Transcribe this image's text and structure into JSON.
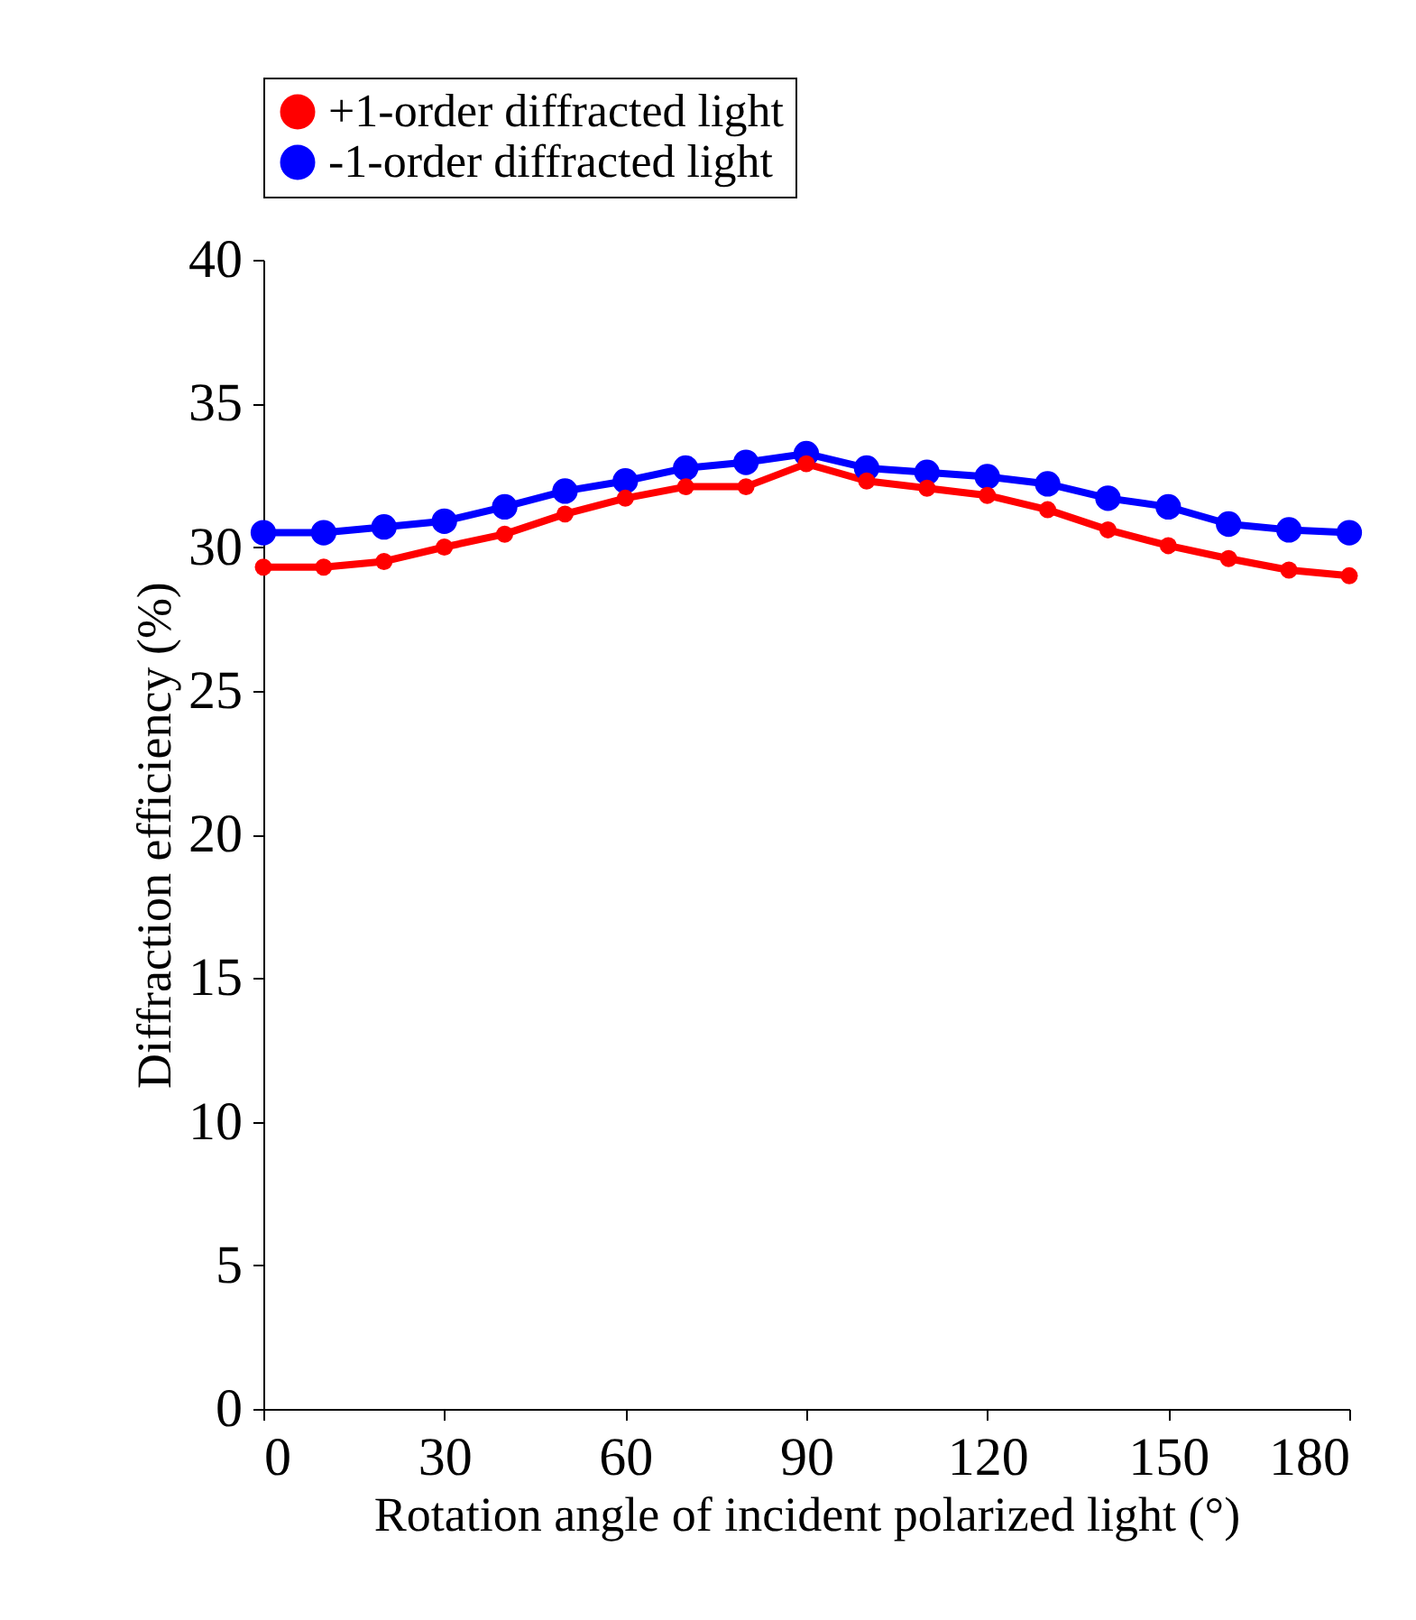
{
  "chart_data": {
    "type": "line",
    "xlabel": "Rotation angle of incident polarized light (°)",
    "ylabel": "Diffraction efficiency (%)",
    "x": [
      0,
      10,
      20,
      30,
      40,
      50,
      60,
      70,
      80,
      90,
      100,
      110,
      120,
      130,
      140,
      150,
      160,
      170,
      180
    ],
    "series": [
      {
        "name": "+1-order diffracted light",
        "color": "#ff0000",
        "values": [
          29.3,
          29.3,
          29.5,
          30.0,
          30.45,
          31.15,
          31.7,
          32.1,
          32.1,
          32.9,
          32.3,
          32.05,
          31.8,
          31.3,
          30.6,
          30.05,
          29.6,
          29.2,
          29.0
        ]
      },
      {
        "name": "-1-order diffracted light",
        "color": "#0000ff",
        "values": [
          30.5,
          30.5,
          30.7,
          30.9,
          31.4,
          31.95,
          32.3,
          32.75,
          32.95,
          33.25,
          32.75,
          32.6,
          32.45,
          32.2,
          31.7,
          31.4,
          30.8,
          30.6,
          30.5
        ]
      }
    ],
    "xlim": [
      0,
      180
    ],
    "xticks": [
      0,
      30,
      60,
      90,
      120,
      150,
      180
    ],
    "ylim": [
      0,
      40
    ],
    "yticks": [
      0,
      5,
      10,
      15,
      20,
      25,
      30,
      35,
      40
    ],
    "grid": false,
    "legend": "top",
    "marker": "circle",
    "line_style": "solid"
  }
}
